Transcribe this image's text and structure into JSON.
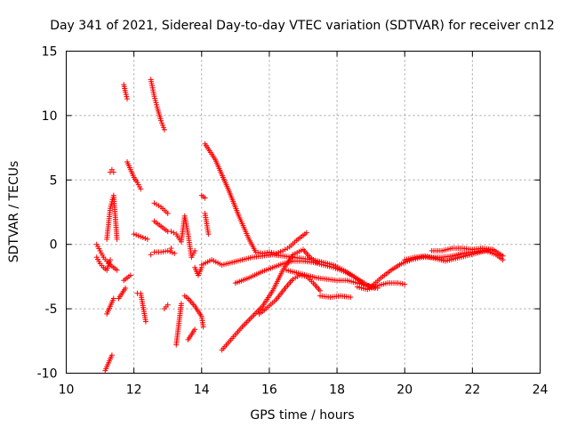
{
  "chart_data": {
    "type": "scatter",
    "title": "Day 341 of 2021, Sidereal Day-to-day VTEC variation (SDTVAR) for receiver cn12",
    "xlabel": "GPS time / hours",
    "ylabel": "SDTVAR / TECUs",
    "xlim": [
      10,
      24
    ],
    "ylim": [
      -10,
      15
    ],
    "xticks": [
      10,
      12,
      14,
      16,
      18,
      20,
      22,
      24
    ],
    "yticks": [
      -10,
      -5,
      0,
      5,
      10,
      15
    ],
    "xtick_labels": [
      "10",
      "12",
      "14",
      "16",
      "18",
      "20",
      "22",
      "24"
    ],
    "ytick_labels": [
      "-10",
      "-5",
      "0",
      "5",
      "10",
      "15"
    ],
    "grid": true,
    "marker": "+",
    "color": "#ff0000",
    "series": [
      {
        "name": "s1",
        "x": [
          14.1,
          14.4,
          14.8,
          15.1,
          15.4,
          15.6,
          15.8,
          16.0,
          16.2
        ],
        "y": [
          7.8,
          6.6,
          4.2,
          2.2,
          0.4,
          -0.6,
          -0.7,
          -0.6,
          -0.7
        ]
      },
      {
        "name": "s2",
        "x": [
          16.2,
          16.4,
          16.6,
          16.8,
          17.0,
          17.1
        ],
        "y": [
          -0.7,
          -0.5,
          -0.2,
          0.3,
          0.7,
          0.9
        ]
      },
      {
        "name": "s3",
        "x": [
          14.6,
          14.9,
          15.2,
          15.5,
          15.8,
          16.1,
          16.4,
          16.7,
          17.0,
          17.2,
          17.4
        ],
        "y": [
          -8.2,
          -7.3,
          -6.4,
          -5.6,
          -4.8,
          -3.6,
          -2.0,
          -0.8,
          -0.4,
          -1.0,
          -1.4
        ]
      },
      {
        "name": "s4",
        "x": [
          15.7,
          15.9,
          16.2,
          16.5,
          16.7,
          16.9,
          17.1,
          17.3,
          17.5
        ],
        "y": [
          -5.4,
          -5.0,
          -4.3,
          -3.3,
          -2.7,
          -2.4,
          -2.5,
          -3.0,
          -3.6
        ]
      },
      {
        "name": "s5",
        "x": [
          17.5,
          17.8,
          18.1,
          18.4
        ],
        "y": [
          -4.0,
          -4.1,
          -4.0,
          -4.1
        ]
      },
      {
        "name": "s6",
        "x": [
          15.0,
          15.4,
          15.8,
          16.1,
          16.4,
          16.7,
          17.0,
          17.3,
          17.6,
          17.9,
          18.2,
          18.5,
          18.8,
          19.1
        ],
        "y": [
          -3.0,
          -2.6,
          -2.1,
          -1.8,
          -1.5,
          -1.3,
          -1.3,
          -1.4,
          -1.6,
          -1.8,
          -2.1,
          -2.5,
          -3.1,
          -3.4
        ]
      },
      {
        "name": "s7",
        "x": [
          14.0,
          14.3,
          14.6,
          14.9,
          15.2,
          15.5,
          15.8,
          16.1,
          16.4,
          16.7,
          17.0,
          17.3,
          17.6,
          17.9,
          18.2,
          18.5,
          18.8,
          19.0
        ],
        "y": [
          -1.6,
          -1.2,
          -1.6,
          -1.4,
          -1.2,
          -1.0,
          -0.9,
          -0.8,
          -0.9,
          -1.0,
          -1.1,
          -1.2,
          -1.4,
          -1.6,
          -2.0,
          -2.5,
          -3.0,
          -3.3
        ]
      },
      {
        "name": "s8",
        "x": [
          16.5,
          16.8,
          17.1,
          17.4,
          17.7,
          18.0,
          18.3,
          18.6,
          18.9,
          19.2
        ],
        "y": [
          -2.0,
          -2.2,
          -2.4,
          -2.6,
          -2.7,
          -2.8,
          -2.8,
          -3.0,
          -3.2,
          -3.4
        ]
      },
      {
        "name": "s9",
        "x": [
          18.6,
          18.9,
          19.2,
          19.5,
          19.8,
          20.0
        ],
        "y": [
          -3.3,
          -3.5,
          -3.2,
          -3.0,
          -3.0,
          -3.1
        ]
      },
      {
        "name": "s10",
        "x": [
          19.0,
          19.3,
          19.6,
          19.9,
          20.2,
          20.5,
          20.8,
          21.1,
          21.4,
          21.7,
          22.0,
          22.3,
          22.6,
          22.9
        ],
        "y": [
          -3.3,
          -2.6,
          -2.0,
          -1.5,
          -1.2,
          -1.0,
          -1.0,
          -1.0,
          -0.9,
          -0.7,
          -0.6,
          -0.5,
          -0.4,
          -0.9
        ]
      },
      {
        "name": "s11",
        "x": [
          20.0,
          20.3,
          20.6,
          20.9,
          21.2,
          21.5,
          21.8,
          22.1,
          22.4,
          22.7,
          22.9
        ],
        "y": [
          -1.2,
          -1.0,
          -0.9,
          -1.1,
          -1.3,
          -1.1,
          -0.9,
          -0.7,
          -0.5,
          -0.8,
          -1.2
        ]
      },
      {
        "name": "s12",
        "x": [
          20.8,
          21.1,
          21.4,
          21.7,
          22.0,
          22.3,
          22.6
        ],
        "y": [
          -0.5,
          -0.5,
          -0.3,
          -0.3,
          -0.4,
          -0.3,
          -0.4
        ]
      },
      {
        "name": "s13",
        "x": [
          10.9,
          11.0,
          11.1,
          11.2,
          11.3,
          11.4,
          11.5
        ],
        "y": [
          0.0,
          -0.5,
          -1.0,
          -1.3,
          -1.6,
          -1.8,
          -2.0
        ]
      },
      {
        "name": "s14",
        "x": [
          10.9,
          11.0,
          11.1,
          11.2,
          11.3
        ],
        "y": [
          -1.0,
          -1.5,
          -1.8,
          -2.0,
          -1.2
        ]
      },
      {
        "name": "s15",
        "x": [
          11.3,
          11.35,
          11.4
        ],
        "y": [
          5.6,
          5.8,
          5.6
        ]
      },
      {
        "name": "s16",
        "x": [
          11.7,
          11.75,
          11.8
        ],
        "y": [
          12.4,
          11.8,
          11.3
        ]
      },
      {
        "name": "s17",
        "x": [
          11.8,
          11.9,
          12.0,
          12.1,
          12.2
        ],
        "y": [
          6.4,
          5.8,
          5.2,
          4.8,
          4.3
        ]
      },
      {
        "name": "s18",
        "x": [
          12.5,
          12.6,
          12.7,
          12.8,
          12.9
        ],
        "y": [
          12.8,
          11.5,
          10.5,
          9.6,
          8.9
        ]
      },
      {
        "name": "s19",
        "x": [
          12.6,
          12.8,
          13.0
        ],
        "y": [
          3.2,
          2.9,
          2.4
        ]
      },
      {
        "name": "s20",
        "x": [
          12.6,
          12.8,
          13.0
        ],
        "y": [
          1.8,
          1.4,
          1.0
        ]
      },
      {
        "name": "s21",
        "x": [
          12.0,
          12.2,
          12.4
        ],
        "y": [
          0.8,
          0.6,
          0.4
        ]
      },
      {
        "name": "s22",
        "x": [
          11.7,
          11.8,
          11.9
        ],
        "y": [
          -2.8,
          -2.6,
          -2.4
        ]
      },
      {
        "name": "s23",
        "x": [
          12.6,
          12.8,
          13.0,
          13.2
        ],
        "y": [
          -0.6,
          -0.6,
          -0.5,
          -0.7
        ]
      },
      {
        "name": "s24",
        "x": [
          14.0,
          14.1
        ],
        "y": [
          3.8,
          3.6
        ]
      },
      {
        "name": "s25",
        "x": [
          13.6,
          13.7,
          13.8
        ],
        "y": [
          -7.4,
          -7.0,
          -6.6
        ]
      },
      {
        "name": "s26",
        "x": [
          11.2,
          11.3,
          11.4
        ],
        "y": [
          -5.4,
          -4.8,
          -4.2
        ]
      },
      {
        "name": "s27",
        "x": [
          11.2,
          11.3,
          11.4,
          11.5
        ],
        "y": [
          0.4,
          2.8,
          3.8,
          0.4
        ]
      },
      {
        "name": "s28",
        "x": [
          11.15,
          11.35,
          11.55,
          11.75
        ],
        "y": [
          -9.8,
          -8.6,
          -4.2,
          -3.4
        ]
      },
      {
        "name": "s29",
        "x": [
          12.1,
          12.2,
          12.35,
          12.5
        ],
        "y": [
          -3.8,
          -3.8,
          -6.0,
          -0.8
        ]
      },
      {
        "name": "s30",
        "x": [
          12.9,
          13.0,
          13.1,
          13.25,
          13.4
        ],
        "y": [
          -5.0,
          -4.7,
          -0.3,
          -7.8,
          -4.6
        ]
      },
      {
        "name": "s31",
        "x": [
          13.5,
          13.6,
          13.8,
          14.0,
          14.05
        ],
        "y": [
          -4.0,
          -4.2,
          -4.8,
          -5.6,
          -6.4
        ]
      },
      {
        "name": "s32",
        "x": [
          13.1,
          13.25,
          13.4,
          13.5,
          13.6,
          13.7,
          13.8
        ],
        "y": [
          1.0,
          0.8,
          0.2,
          2.2,
          0.8,
          -1.0,
          -0.5
        ]
      },
      {
        "name": "s33",
        "x": [
          13.8,
          13.9,
          14.0,
          14.1,
          14.2
        ],
        "y": [
          -1.8,
          -2.4,
          -1.8,
          2.4,
          0.8
        ]
      }
    ]
  }
}
